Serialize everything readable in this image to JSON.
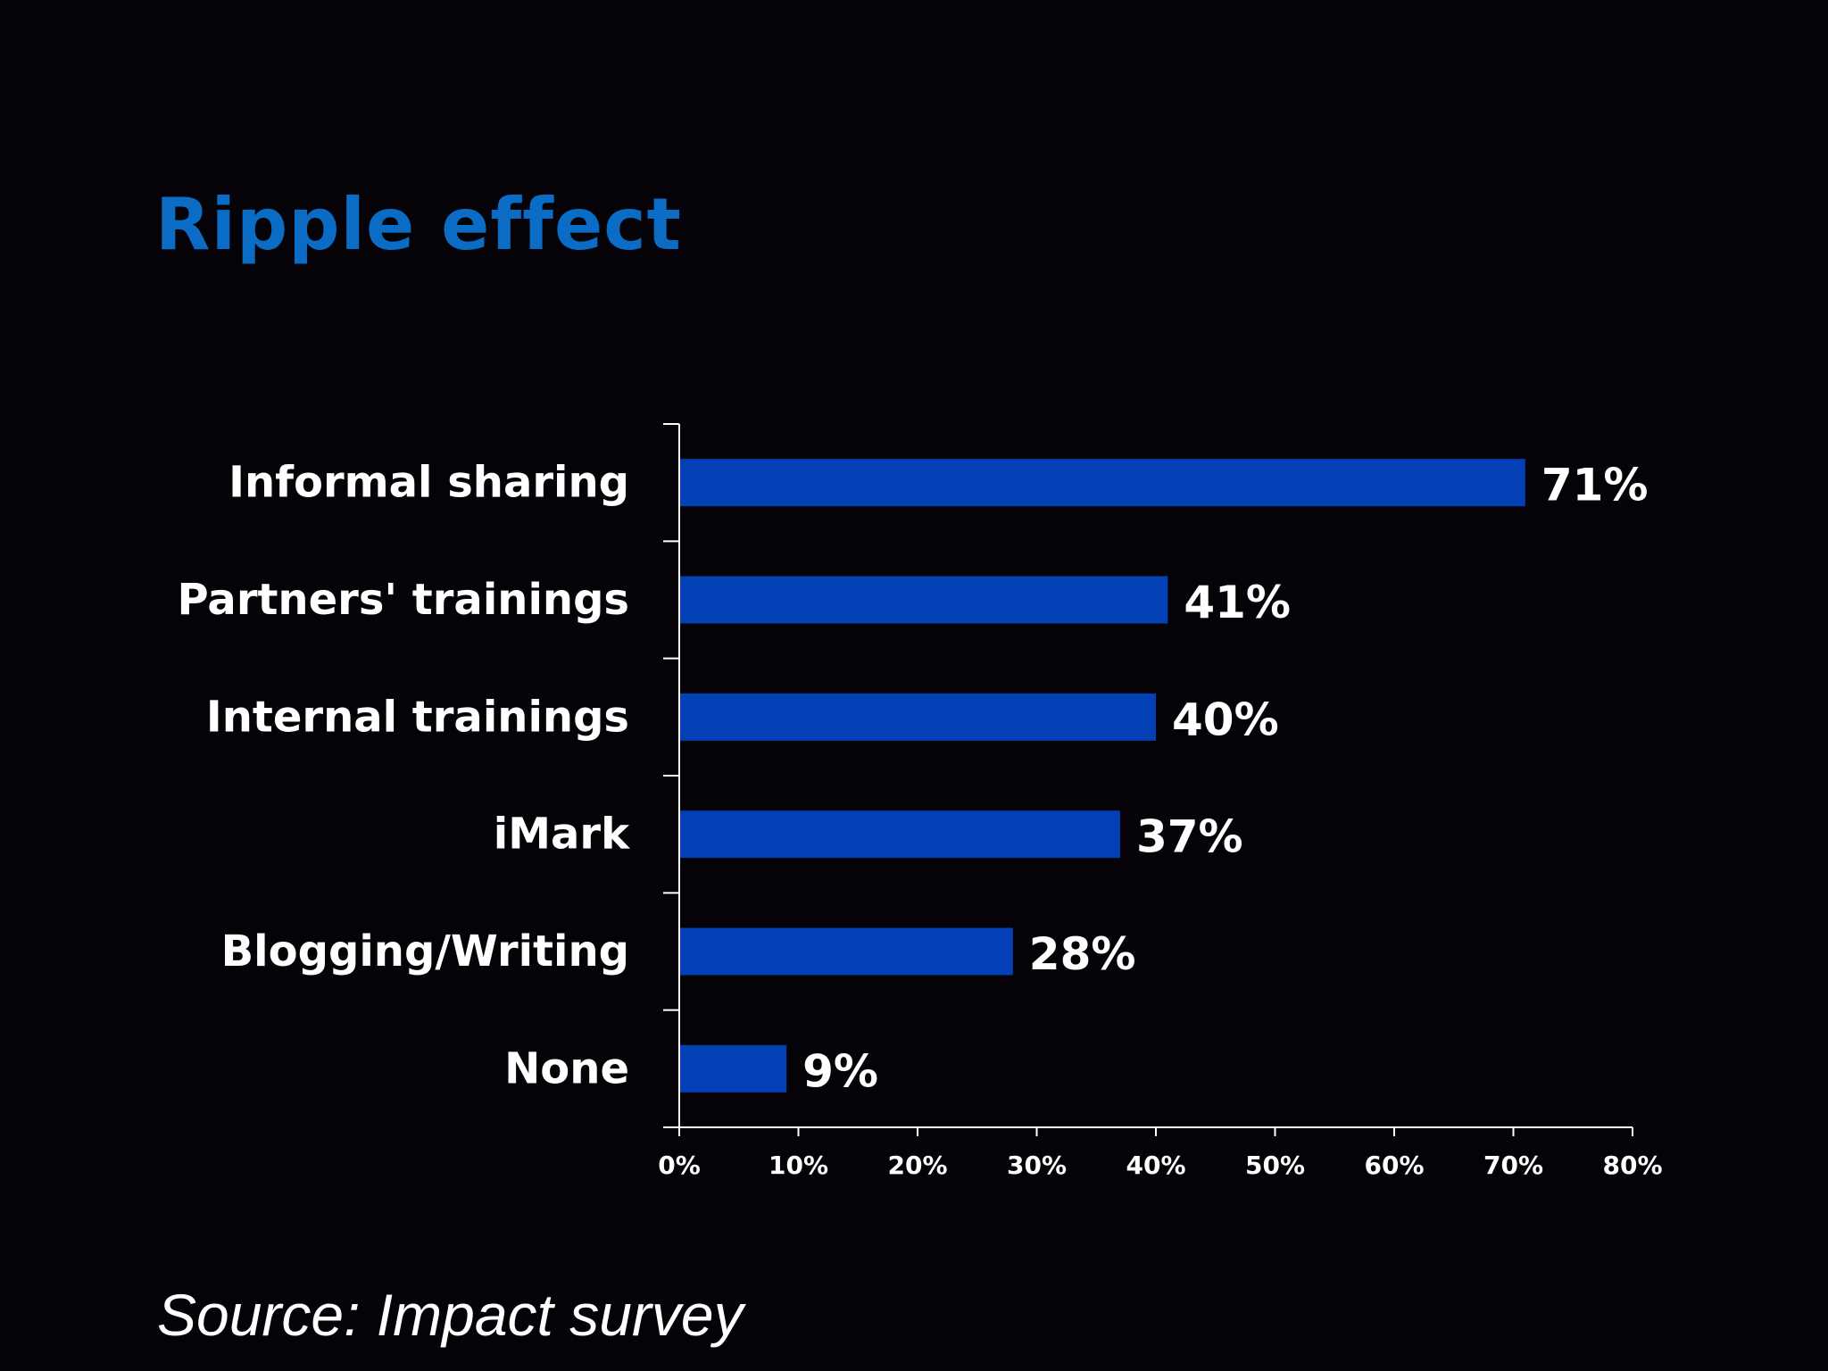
{
  "slide": {
    "title": "Ripple effect",
    "source": "Source: Impact survey"
  },
  "colors": {
    "background": "#050308",
    "title": "#0a6cc4",
    "bar": "#0340b5",
    "text": "#ffffff",
    "axis": "#ffffff"
  },
  "chart_data": {
    "type": "bar",
    "orientation": "horizontal",
    "title": "",
    "xlabel": "",
    "ylabel": "",
    "categories": [
      "Informal sharing",
      "Partners' trainings",
      "Internal trainings",
      "iMark",
      "Blogging/Writing",
      "None"
    ],
    "values": [
      71,
      41,
      40,
      37,
      28,
      9
    ],
    "data_labels": [
      "71%",
      "41%",
      "40%",
      "37%",
      "28%",
      "9%"
    ],
    "xlim": [
      0,
      80
    ],
    "x_ticks": [
      0,
      10,
      20,
      30,
      40,
      50,
      60,
      70,
      80
    ],
    "x_tick_labels": [
      "0%",
      "10%",
      "20%",
      "30%",
      "40%",
      "50%",
      "60%",
      "70%",
      "80%"
    ],
    "grid": false,
    "legend": "none"
  }
}
